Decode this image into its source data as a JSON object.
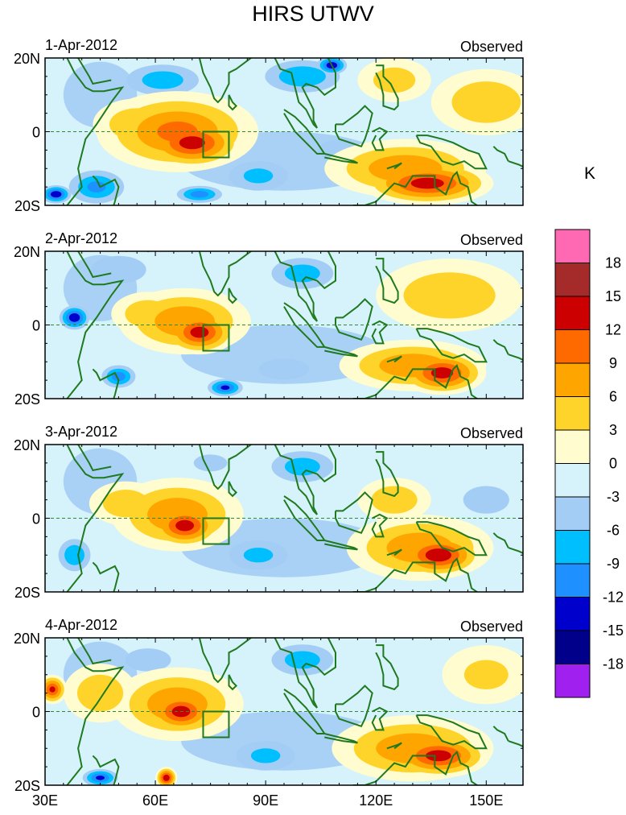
{
  "chart_data": {
    "type": "heatmap",
    "title": "HIRS UTWV",
    "panels": [
      {
        "date": "1-Apr-2012",
        "label": "Observed",
        "blobs": [
          {
            "lon": 70,
            "lat": -3,
            "rx": 14,
            "ry": 7,
            "value": 13
          },
          {
            "lon": 66,
            "lat": 0,
            "rx": 22,
            "ry": 11,
            "value": 9
          },
          {
            "lon": 55,
            "lat": 2,
            "rx": 12,
            "ry": 7,
            "value": 5
          },
          {
            "lon": 134,
            "lat": -14,
            "rx": 18,
            "ry": 6,
            "value": 13
          },
          {
            "lon": 128,
            "lat": -10,
            "rx": 22,
            "ry": 8,
            "value": 8
          },
          {
            "lon": 150,
            "lat": 8,
            "rx": 15,
            "ry": 9,
            "value": 5
          },
          {
            "lon": 125,
            "lat": 14,
            "rx": 10,
            "ry": 6,
            "value": 4
          },
          {
            "lon": 44,
            "lat": -15,
            "rx": 10,
            "ry": 6,
            "value": -9
          },
          {
            "lon": 33,
            "lat": -17,
            "rx": 5,
            "ry": 3,
            "value": -14
          },
          {
            "lon": 62,
            "lat": 14,
            "rx": 14,
            "ry": 6,
            "value": -7
          },
          {
            "lon": 100,
            "lat": 15,
            "rx": 14,
            "ry": 6,
            "value": -8
          },
          {
            "lon": 108,
            "lat": 18,
            "rx": 5,
            "ry": 3,
            "value": -14
          },
          {
            "lon": 88,
            "lat": -12,
            "rx": 12,
            "ry": 6,
            "value": -6
          },
          {
            "lon": 72,
            "lat": -17,
            "rx": 8,
            "ry": 3,
            "value": -10
          },
          {
            "lon": 110,
            "lat": -5,
            "rx": 10,
            "ry": 5,
            "value": -4
          }
        ]
      },
      {
        "date": "2-Apr-2012",
        "label": "Observed",
        "blobs": [
          {
            "lon": 72,
            "lat": -2,
            "rx": 10,
            "ry": 6,
            "value": 13
          },
          {
            "lon": 68,
            "lat": 1,
            "rx": 18,
            "ry": 9,
            "value": 8
          },
          {
            "lon": 58,
            "lat": 3,
            "rx": 10,
            "ry": 6,
            "value": 5
          },
          {
            "lon": 138,
            "lat": -13,
            "rx": 12,
            "ry": 6,
            "value": 13
          },
          {
            "lon": 130,
            "lat": -11,
            "rx": 20,
            "ry": 7,
            "value": 8
          },
          {
            "lon": 140,
            "lat": 8,
            "rx": 20,
            "ry": 10,
            "value": 5
          },
          {
            "lon": 38,
            "lat": 2,
            "rx": 5,
            "ry": 4,
            "value": -14
          },
          {
            "lon": 50,
            "lat": -14,
            "rx": 6,
            "ry": 4,
            "value": -10
          },
          {
            "lon": 50,
            "lat": 15,
            "rx": 12,
            "ry": 6,
            "value": -5
          },
          {
            "lon": 100,
            "lat": 14,
            "rx": 12,
            "ry": 6,
            "value": -7
          },
          {
            "lon": 79,
            "lat": -17,
            "rx": 6,
            "ry": 3,
            "value": -12
          },
          {
            "lon": 95,
            "lat": -12,
            "rx": 12,
            "ry": 5,
            "value": -4
          }
        ]
      },
      {
        "date": "3-Apr-2012",
        "label": "Observed",
        "blobs": [
          {
            "lon": 68,
            "lat": -2,
            "rx": 10,
            "ry": 6,
            "value": 13
          },
          {
            "lon": 66,
            "lat": 1,
            "rx": 18,
            "ry": 10,
            "value": 8
          },
          {
            "lon": 52,
            "lat": 4,
            "rx": 10,
            "ry": 6,
            "value": 5
          },
          {
            "lon": 137,
            "lat": -10,
            "rx": 12,
            "ry": 6,
            "value": 14
          },
          {
            "lon": 132,
            "lat": -8,
            "rx": 20,
            "ry": 9,
            "value": 8
          },
          {
            "lon": 125,
            "lat": 5,
            "rx": 10,
            "ry": 6,
            "value": 5
          },
          {
            "lon": 100,
            "lat": 14,
            "rx": 12,
            "ry": 6,
            "value": -7
          },
          {
            "lon": 38,
            "lat": -10,
            "rx": 6,
            "ry": 6,
            "value": -8
          },
          {
            "lon": 88,
            "lat": -10,
            "rx": 12,
            "ry": 6,
            "value": -6
          },
          {
            "lon": 150,
            "lat": 5,
            "rx": 10,
            "ry": 6,
            "value": -5
          },
          {
            "lon": 75,
            "lat": 15,
            "rx": 8,
            "ry": 4,
            "value": -4
          }
        ]
      },
      {
        "date": "4-Apr-2012",
        "label": "Observed",
        "blobs": [
          {
            "lon": 67,
            "lat": 0,
            "rx": 10,
            "ry": 6,
            "value": 13
          },
          {
            "lon": 66,
            "lat": 2,
            "rx": 18,
            "ry": 10,
            "value": 8
          },
          {
            "lon": 45,
            "lat": 5,
            "rx": 10,
            "ry": 8,
            "value": 5
          },
          {
            "lon": 32,
            "lat": 6,
            "rx": 4,
            "ry": 4,
            "value": 12
          },
          {
            "lon": 137,
            "lat": -12,
            "rx": 14,
            "ry": 6,
            "value": 13
          },
          {
            "lon": 130,
            "lat": -10,
            "rx": 22,
            "ry": 9,
            "value": 8
          },
          {
            "lon": 150,
            "lat": 10,
            "rx": 12,
            "ry": 8,
            "value": 3
          },
          {
            "lon": 100,
            "lat": 14,
            "rx": 12,
            "ry": 6,
            "value": -7
          },
          {
            "lon": 58,
            "lat": 14,
            "rx": 10,
            "ry": 5,
            "value": -5
          },
          {
            "lon": 90,
            "lat": -12,
            "rx": 12,
            "ry": 6,
            "value": -6
          },
          {
            "lon": 45,
            "lat": -18,
            "rx": 6,
            "ry": 3,
            "value": -12
          },
          {
            "lon": 63,
            "lat": -18,
            "rx": 3,
            "ry": 3,
            "value": 14
          }
        ]
      }
    ],
    "x_axis": {
      "range": [
        30,
        160
      ],
      "ticks": [
        30,
        60,
        90,
        120,
        150
      ],
      "tick_labels": [
        "30E",
        "60E",
        "90E",
        "120E",
        "150E"
      ]
    },
    "y_axis": {
      "range": [
        -20,
        20
      ],
      "ticks": [
        20,
        0,
        -20
      ],
      "tick_labels": [
        "20N",
        "0",
        "20S"
      ]
    },
    "box_region": {
      "lon_min": 73,
      "lon_max": 80,
      "lat_min": -7,
      "lat_max": 0
    },
    "colorbar": {
      "unit": "K",
      "levels": [
        -18,
        -15,
        -12,
        -9,
        -6,
        -3,
        0,
        3,
        6,
        9,
        12,
        15,
        18
      ],
      "level_labels": [
        "18",
        "15",
        "12",
        "9",
        "6",
        "3",
        "0",
        "-3",
        "-6",
        "-9",
        "-12",
        "-15",
        "-18"
      ],
      "colors": [
        "#a020f0",
        "#00008b",
        "#0000cd",
        "#1e90ff",
        "#00bfff",
        "#a4cdf5",
        "#d6f2fb",
        "#fffdd0",
        "#ffd42a",
        "#ffa500",
        "#ff6a00",
        "#cc0000",
        "#a52a2a",
        "#ff69b4"
      ]
    }
  }
}
